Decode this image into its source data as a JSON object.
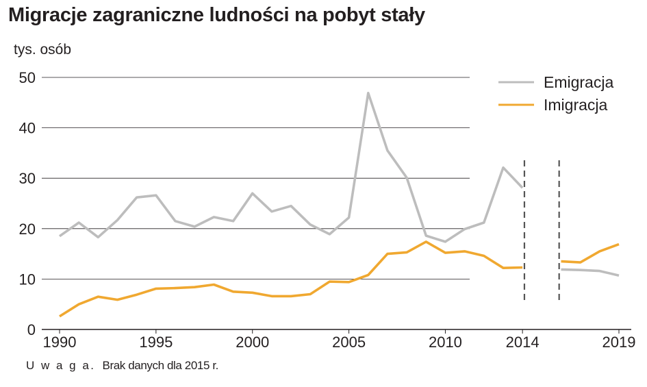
{
  "title": "Migracje zagraniczne ludności na pobyt stały",
  "note": {
    "prefix": "U w a g a.",
    "text": "Brak danych dla 2015 r."
  },
  "colors": {
    "emigration": "#bdbdbd",
    "immigration": "#f0a830",
    "grid": "#231f20",
    "dashed": "#555555"
  },
  "chart_data": {
    "type": "line",
    "ylabel": "tys. osób",
    "ylim": [
      0,
      50
    ],
    "xlim": [
      1990,
      2019
    ],
    "yticks": [
      0,
      10,
      20,
      30,
      40,
      50
    ],
    "xticks": [
      "1990",
      "1995",
      "2000",
      "2005",
      "2010",
      "2014",
      "2019"
    ],
    "grid": true,
    "legend_position": "top-right",
    "gap_year": 2015,
    "series": [
      {
        "name": "Emigracja",
        "x": [
          1990,
          1991,
          1992,
          1993,
          1994,
          1995,
          1996,
          1997,
          1998,
          1999,
          2000,
          2001,
          2002,
          2003,
          2004,
          2005,
          2006,
          2007,
          2008,
          2009,
          2010,
          2011,
          2012,
          2013,
          2014,
          2016,
          2017,
          2018,
          2019
        ],
        "values": [
          18.5,
          21.2,
          18.3,
          21.7,
          26.2,
          26.6,
          21.5,
          20.4,
          22.3,
          21.5,
          27.0,
          23.4,
          24.5,
          20.8,
          18.9,
          22.2,
          46.9,
          35.5,
          30.1,
          18.6,
          17.4,
          19.9,
          21.2,
          32.1,
          28.1,
          11.9,
          11.8,
          11.6,
          10.7
        ]
      },
      {
        "name": "Imigracja",
        "x": [
          1990,
          1991,
          1992,
          1993,
          1994,
          1995,
          1996,
          1997,
          1998,
          1999,
          2000,
          2001,
          2002,
          2003,
          2004,
          2005,
          2006,
          2007,
          2008,
          2009,
          2010,
          2011,
          2012,
          2013,
          2014,
          2016,
          2017,
          2018,
          2019
        ],
        "values": [
          2.6,
          5.0,
          6.5,
          5.9,
          6.9,
          8.1,
          8.2,
          8.4,
          8.9,
          7.5,
          7.3,
          6.6,
          6.6,
          7.0,
          9.5,
          9.4,
          10.8,
          15.0,
          15.3,
          17.4,
          15.2,
          15.5,
          14.6,
          12.2,
          12.3,
          13.5,
          13.3,
          15.5,
          16.9
        ]
      }
    ]
  }
}
